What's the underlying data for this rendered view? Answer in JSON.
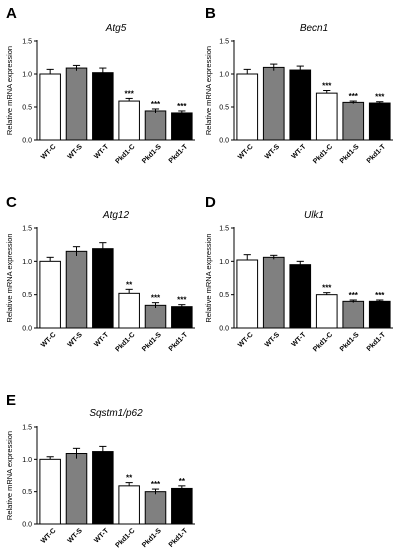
{
  "colors": {
    "C": "#ffffff",
    "S": "#808080",
    "T": "#000000"
  },
  "chart_data": [
    {
      "type": "bar",
      "panel": "A",
      "title": "Atg5",
      "ylabel": "Relative mRNA expression",
      "ylim": [
        0,
        1.5
      ],
      "yticks": [
        "0.0",
        "0.5",
        "1.0",
        "1.5"
      ],
      "categories": [
        "WT-C",
        "WT-S",
        "WT-T",
        "Pkd1-C",
        "Pkd1-S",
        "Pkd1-T"
      ],
      "values": [
        1.0,
        1.09,
        1.02,
        0.59,
        0.44,
        0.41
      ],
      "errors": [
        0.07,
        0.04,
        0.07,
        0.04,
        0.03,
        0.03
      ],
      "significance": [
        "",
        "",
        "",
        "***",
        "***",
        "***"
      ]
    },
    {
      "type": "bar",
      "panel": "B",
      "title": "Becn1",
      "ylabel": "Relative mRNA expression",
      "ylim": [
        0,
        1.5
      ],
      "yticks": [
        "0.0",
        "0.5",
        "1.0",
        "1.5"
      ],
      "categories": [
        "WT-C",
        "WT-S",
        "WT-T",
        "Pkd1-C",
        "Pkd1-S",
        "Pkd1-T"
      ],
      "values": [
        1.0,
        1.1,
        1.06,
        0.71,
        0.57,
        0.56
      ],
      "errors": [
        0.07,
        0.05,
        0.06,
        0.04,
        0.02,
        0.02
      ],
      "significance": [
        "",
        "",
        "",
        "***",
        "***",
        "***"
      ]
    },
    {
      "type": "bar",
      "panel": "C",
      "title": "Atg12",
      "ylabel": "Relative mRNA expression",
      "ylim": [
        0,
        1.5
      ],
      "yticks": [
        "0.0",
        "0.5",
        "1.0",
        "1.5"
      ],
      "categories": [
        "WT-C",
        "WT-S",
        "WT-T",
        "Pkd1-C",
        "Pkd1-S",
        "Pkd1-T"
      ],
      "values": [
        1.0,
        1.15,
        1.19,
        0.52,
        0.34,
        0.32
      ],
      "errors": [
        0.06,
        0.07,
        0.09,
        0.06,
        0.04,
        0.03
      ],
      "significance": [
        "",
        "",
        "",
        "**",
        "***",
        "***"
      ]
    },
    {
      "type": "bar",
      "panel": "D",
      "title": "Ulk1",
      "ylabel": "Relative mRNA expression",
      "ylim": [
        0,
        1.5
      ],
      "yticks": [
        "0.0",
        "0.5",
        "1.0",
        "1.5"
      ],
      "categories": [
        "WT-C",
        "WT-S",
        "WT-T",
        "Pkd1-C",
        "Pkd1-S",
        "Pkd1-T"
      ],
      "values": [
        1.02,
        1.06,
        0.95,
        0.5,
        0.4,
        0.4
      ],
      "errors": [
        0.08,
        0.03,
        0.05,
        0.03,
        0.02,
        0.02
      ],
      "significance": [
        "",
        "",
        "",
        "***",
        "***",
        "***"
      ]
    },
    {
      "type": "bar",
      "panel": "E",
      "title": "Sqstm1/p62",
      "ylabel": "Relative mRNA expression",
      "ylim": [
        0,
        1.5
      ],
      "yticks": [
        "0.0",
        "0.5",
        "1.0",
        "1.5"
      ],
      "categories": [
        "WT-C",
        "WT-S",
        "WT-T",
        "Pkd1-C",
        "Pkd1-S",
        "Pkd1-T"
      ],
      "values": [
        1.0,
        1.09,
        1.12,
        0.59,
        0.5,
        0.55
      ],
      "errors": [
        0.04,
        0.08,
        0.08,
        0.05,
        0.04,
        0.04
      ],
      "significance": [
        "",
        "",
        "",
        "**",
        "***",
        "**"
      ]
    }
  ]
}
